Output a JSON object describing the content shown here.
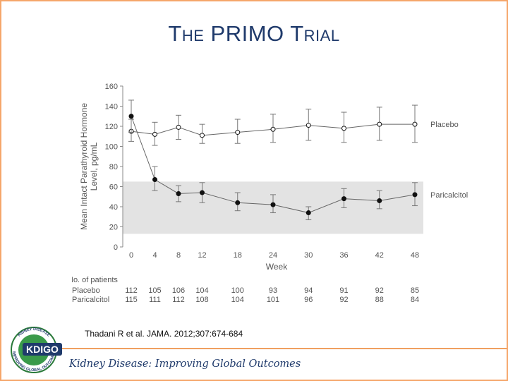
{
  "slide": {
    "title_lead1": "T",
    "title_small1": "HE",
    "title_word2": "PRIMO",
    "title_lead3": "T",
    "title_small3": "RIAL",
    "citation": "Thadani R et al. JAMA. 2012;307:674-684",
    "footer": "Kidney Disease: Improving Global Outcomes",
    "logo": {
      "center_text": "KDIGO",
      "ring_top": "KIDNEY DISEASE",
      "ring_bottom": "IMPROVING GLOBAL OUTCOMES"
    }
  },
  "colors": {
    "title": "#1f3a6b",
    "accent": "#f0a060",
    "band": "#e3e3e3",
    "line": "#666666",
    "marker": "#111111"
  },
  "chart_data": {
    "type": "line",
    "title": "",
    "ylabel_line1": "Mean Intact Parathyroid Hormone",
    "ylabel_line2": "Level, pg/mL",
    "xlabel": "Week",
    "x": [
      0,
      4,
      8,
      12,
      18,
      24,
      30,
      36,
      42,
      48
    ],
    "ylim": [
      0,
      160
    ],
    "yticks": [
      0,
      20,
      40,
      60,
      80,
      100,
      120,
      140,
      160
    ],
    "shaded_band": [
      13,
      65
    ],
    "series": [
      {
        "name": "Placebo",
        "marker": "open-circle",
        "values": [
          115,
          112,
          119,
          111,
          114,
          117,
          121,
          118,
          122,
          122
        ],
        "err_low": [
          105,
          101,
          107,
          103,
          103,
          104,
          106,
          104,
          106,
          104
        ],
        "err_high": [
          127,
          124,
          131,
          122,
          127,
          132,
          137,
          134,
          139,
          141
        ]
      },
      {
        "name": "Paricalcitol",
        "marker": "filled-circle",
        "values": [
          130,
          67,
          53,
          54,
          44,
          42,
          34,
          48,
          46,
          52
        ],
        "err_low": [
          114,
          56,
          45,
          44,
          36,
          34,
          27,
          39,
          38,
          41
        ],
        "err_high": [
          146,
          80,
          61,
          64,
          54,
          52,
          40,
          58,
          56,
          64
        ]
      }
    ],
    "patients_table": {
      "header": "No. of patients",
      "rows": [
        {
          "label": "Placebo",
          "values": [
            "112",
            "105",
            "106",
            "104",
            "100",
            "93",
            "94",
            "91",
            "92",
            "85"
          ]
        },
        {
          "label": "Paricalcitol",
          "values": [
            "115",
            "111",
            "112",
            "108",
            "104",
            "101",
            "96",
            "92",
            "88",
            "84"
          ]
        }
      ]
    }
  }
}
